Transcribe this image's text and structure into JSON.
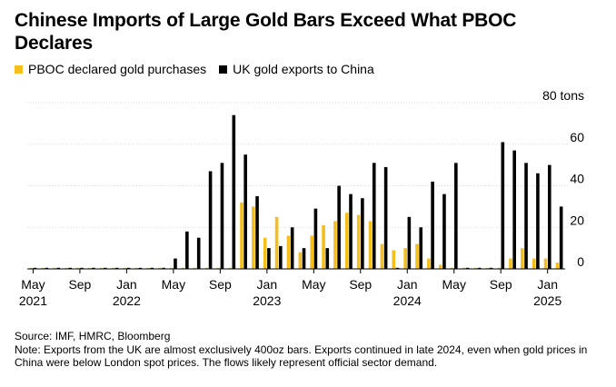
{
  "title": "Chinese Imports of Large Gold Bars Exceed What PBOC Declares",
  "legend": [
    {
      "label": "PBOC declared gold purchases",
      "color": "#f5be1a"
    },
    {
      "label": "UK gold exports to China",
      "color": "#000000"
    }
  ],
  "footer": {
    "source": "Source: IMF, HMRC, Bloomberg",
    "note": "Note: Exports from the UK are almost exclusively 400oz bars. Exports continued in late 2024, even when gold prices in China were below London spot prices. The flows likely represent official sector demand."
  },
  "chart_data": {
    "type": "bar",
    "ylabel": "",
    "ylim": [
      0,
      80
    ],
    "yunit": "tons",
    "yticks": [
      {
        "value": 80,
        "label": "80 tons"
      },
      {
        "value": 60,
        "label": "60"
      },
      {
        "value": 40,
        "label": "40"
      },
      {
        "value": 20,
        "label": "20"
      },
      {
        "value": 0,
        "label": "0"
      }
    ],
    "categories": [
      "May 2021",
      "Jun 2021",
      "Jul 2021",
      "Aug 2021",
      "Sep 2021",
      "Oct 2021",
      "Nov 2021",
      "Dec 2021",
      "Jan 2022",
      "Feb 2022",
      "Mar 2022",
      "Apr 2022",
      "May 2022",
      "Jun 2022",
      "Jul 2022",
      "Aug 2022",
      "Sep 2022",
      "Oct 2022",
      "Nov 2022",
      "Dec 2022",
      "Jan 2023",
      "Feb 2023",
      "Mar 2023",
      "Apr 2023",
      "May 2023",
      "Jun 2023",
      "Jul 2023",
      "Aug 2023",
      "Sep 2023",
      "Oct 2023",
      "Nov 2023",
      "Dec 2023",
      "Jan 2024",
      "Feb 2024",
      "Mar 2024",
      "Apr 2024",
      "May 2024",
      "Jun 2024",
      "Jul 2024",
      "Aug 2024",
      "Sep 2024",
      "Oct 2024",
      "Nov 2024",
      "Dec 2024",
      "Jan 2025",
      "Feb 2025"
    ],
    "xticks": [
      {
        "index": 0,
        "month": "May",
        "year": "2021"
      },
      {
        "index": 4,
        "month": "Sep",
        "year": ""
      },
      {
        "index": 8,
        "month": "Jan",
        "year": "2022"
      },
      {
        "index": 12,
        "month": "May",
        "year": ""
      },
      {
        "index": 16,
        "month": "Sep",
        "year": ""
      },
      {
        "index": 20,
        "month": "Jan",
        "year": "2023"
      },
      {
        "index": 24,
        "month": "May",
        "year": ""
      },
      {
        "index": 28,
        "month": "Sep",
        "year": ""
      },
      {
        "index": 32,
        "month": "Jan",
        "year": "2024"
      },
      {
        "index": 36,
        "month": "May",
        "year": ""
      },
      {
        "index": 40,
        "month": "Sep",
        "year": ""
      },
      {
        "index": 44,
        "month": "Jan",
        "year": "2025"
      }
    ],
    "series": [
      {
        "name": "PBOC declared gold purchases",
        "color": "#f5be1a",
        "values": [
          0,
          0,
          0,
          0,
          0,
          0,
          0,
          0,
          0,
          0,
          0,
          0,
          0,
          0,
          0,
          0,
          0,
          0,
          32,
          30,
          15,
          25,
          16,
          8,
          16,
          21,
          23,
          27,
          26,
          23,
          12,
          9,
          10,
          12,
          5,
          2,
          0,
          0,
          0,
          0,
          0,
          5,
          10,
          5,
          5,
          3
        ]
      },
      {
        "name": "UK gold exports to China",
        "color": "#000000",
        "values": [
          0,
          0,
          0,
          0,
          0,
          0,
          0,
          0,
          0,
          0,
          0,
          0,
          5,
          18,
          15,
          47,
          51,
          74,
          55,
          35,
          10,
          11,
          20,
          10,
          29,
          10,
          40,
          36,
          34,
          51,
          49,
          0,
          25,
          20,
          42,
          36,
          51,
          0,
          0,
          0,
          61,
          57,
          51,
          46,
          50,
          30
        ]
      }
    ]
  }
}
